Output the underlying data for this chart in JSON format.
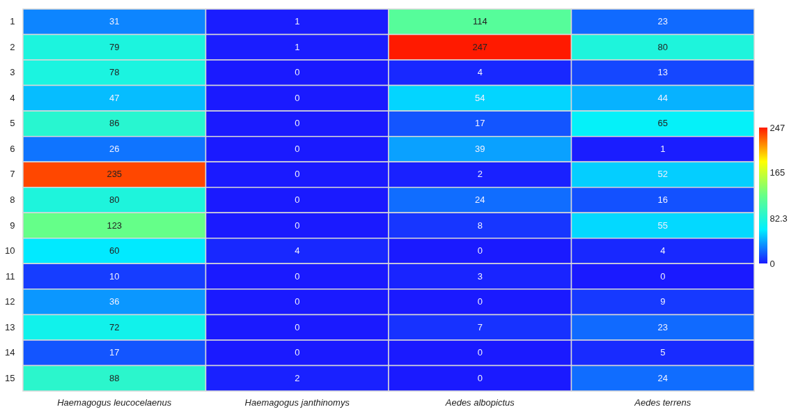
{
  "chart_data": {
    "type": "heatmap",
    "categories": [
      "Haemagogus leucocelaenus",
      "Haemagogus janthinomys",
      "Aedes albopictus",
      "Aedes terrens"
    ],
    "y_categories": [
      "1",
      "2",
      "3",
      "4",
      "5",
      "6",
      "7",
      "8",
      "9",
      "10",
      "11",
      "12",
      "13",
      "14",
      "15"
    ],
    "cells": [
      [
        31,
        1,
        114,
        23
      ],
      [
        79,
        1,
        247,
        80
      ],
      [
        78,
        0,
        4,
        13
      ],
      [
        47,
        0,
        54,
        44
      ],
      [
        86,
        0,
        17,
        65
      ],
      [
        26,
        0,
        39,
        1
      ],
      [
        235,
        0,
        2,
        52
      ],
      [
        80,
        0,
        24,
        16
      ],
      [
        123,
        0,
        8,
        55
      ],
      [
        60,
        4,
        0,
        4
      ],
      [
        10,
        0,
        3,
        0
      ],
      [
        36,
        0,
        0,
        9
      ],
      [
        72,
        0,
        7,
        23
      ],
      [
        17,
        0,
        0,
        5
      ],
      [
        88,
        2,
        0,
        24
      ]
    ],
    "data_labels": true,
    "clim": [
      0,
      247
    ],
    "cticks": [
      0,
      82.3,
      165,
      247
    ],
    "colors": [
      "#1a1aff",
      "#00f0ff",
      "#66ff88",
      "#ffff00",
      "#ff1a00"
    ]
  }
}
